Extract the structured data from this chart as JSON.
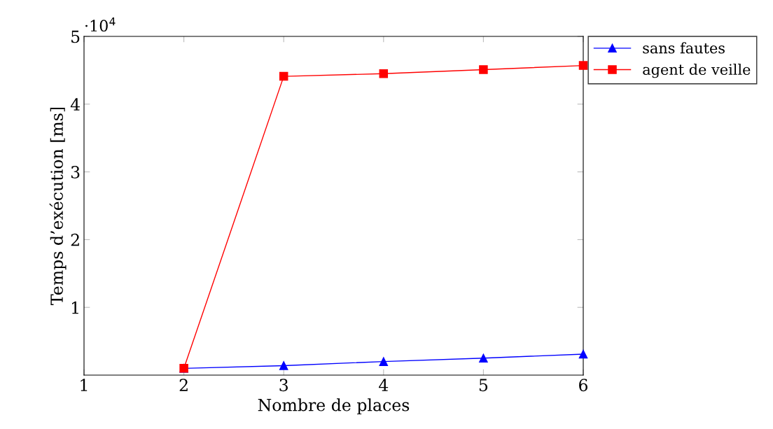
{
  "chart_data": {
    "type": "line",
    "xlabel": "Nombre de places",
    "ylabel": "Temps d’exécution [ms]",
    "x": [
      2,
      3,
      4,
      5,
      6
    ],
    "series": [
      {
        "name": "sans fautes",
        "color": "#0000ff",
        "marker": "triangle",
        "values": [
          0.1,
          0.14,
          0.2,
          0.25,
          0.31
        ]
      },
      {
        "name": "agent de veille",
        "color": "#ff0000",
        "marker": "square",
        "values": [
          0.1,
          4.41,
          4.45,
          4.51,
          4.57
        ]
      }
    ],
    "xlim": [
      1,
      6
    ],
    "xticks": [
      1,
      2,
      3,
      4,
      5,
      6
    ],
    "ylim": [
      0,
      5
    ],
    "yticks": [
      1,
      2,
      3,
      4,
      5
    ],
    "annotations": [
      "·10$^{4}$"
    ],
    "grid": false,
    "legend": "top right",
    "line_style": "solid"
  }
}
